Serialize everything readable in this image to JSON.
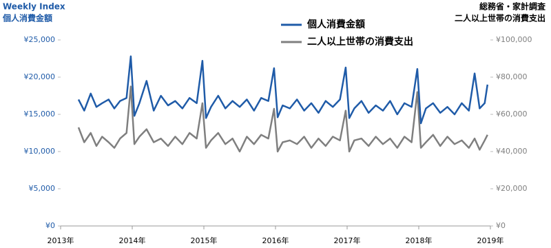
{
  "chart_data": {
    "type": "line",
    "title": "Weekly Index",
    "subtitle": "個人消費金額",
    "source_title": "総務省・家計調査",
    "source_subtitle": "二人以上世帯の消費支出",
    "x": [
      2013.25,
      2013.33,
      2013.42,
      2013.5,
      2013.58,
      2013.67,
      2013.75,
      2013.83,
      2013.92,
      2013.98,
      2014.03,
      2014.1,
      2014.2,
      2014.3,
      2014.4,
      2014.5,
      2014.6,
      2014.7,
      2014.8,
      2014.9,
      2014.98,
      2015.03,
      2015.1,
      2015.2,
      2015.3,
      2015.4,
      2015.5,
      2015.6,
      2015.7,
      2015.8,
      2015.9,
      2015.98,
      2016.03,
      2016.1,
      2016.2,
      2016.3,
      2016.4,
      2016.5,
      2016.6,
      2016.7,
      2016.8,
      2016.9,
      2016.98,
      2017.03,
      2017.1,
      2017.2,
      2017.3,
      2017.4,
      2017.5,
      2017.6,
      2017.7,
      2017.8,
      2017.9,
      2017.98,
      2018.03,
      2018.1,
      2018.2,
      2018.3,
      2018.4,
      2018.5,
      2018.6,
      2018.7,
      2018.78,
      2018.85,
      2018.92,
      2018.96
    ],
    "series": [
      {
        "name": "個人消費金額",
        "color": "#1f5ba8",
        "values": [
          17000,
          15500,
          17800,
          16000,
          16500,
          17000,
          15800,
          16800,
          17200,
          22800,
          14800,
          16500,
          19500,
          15500,
          17500,
          16200,
          16800,
          15800,
          17200,
          16500,
          22200,
          14500,
          16000,
          17500,
          15800,
          16800,
          16000,
          17000,
          15500,
          17200,
          16800,
          21200,
          14600,
          16200,
          15800,
          17000,
          15500,
          16500,
          15200,
          16800,
          16000,
          17000,
          21300,
          14500,
          15800,
          16800,
          15200,
          16200,
          15500,
          16800,
          15000,
          16500,
          16000,
          21100,
          13800,
          15800,
          16500,
          15200,
          16000,
          15000,
          16500,
          15500,
          20500,
          15800,
          16500,
          19000
        ]
      },
      {
        "name": "二人以上世帯の消費支出",
        "color": "#7f7f7f",
        "axis": "y2",
        "values": [
          53000,
          45000,
          50000,
          43000,
          48000,
          45000,
          42000,
          47000,
          50000,
          75000,
          44000,
          48000,
          52000,
          45000,
          47000,
          43000,
          48000,
          44000,
          50000,
          47000,
          66000,
          42000,
          46000,
          50000,
          44000,
          47000,
          40000,
          48000,
          44000,
          49000,
          47000,
          63000,
          40000,
          45000,
          46000,
          44000,
          48000,
          42000,
          47000,
          43000,
          48000,
          46000,
          62000,
          40000,
          46000,
          47000,
          43000,
          48000,
          44000,
          47000,
          42000,
          48000,
          45000,
          72000,
          42000,
          45000,
          49000,
          43000,
          48000,
          44000,
          46000,
          42000,
          47000,
          41000,
          46000,
          49000
        ]
      }
    ],
    "xlim": [
      2013,
      2019
    ],
    "xticks": [
      {
        "value": 2013,
        "label": "2013年"
      },
      {
        "value": 2014,
        "label": "2014年"
      },
      {
        "value": 2015,
        "label": "2015年"
      },
      {
        "value": 2016,
        "label": "2016年"
      },
      {
        "value": 2017,
        "label": "2017年"
      },
      {
        "value": 2018,
        "label": "2018年"
      },
      {
        "value": 2019,
        "label": "2019年"
      }
    ],
    "ylim": [
      0,
      25000
    ],
    "yticks": [
      {
        "value": 0,
        "label": "¥0"
      },
      {
        "value": 5000,
        "label": "¥5,000"
      },
      {
        "value": 10000,
        "label": "¥10,000"
      },
      {
        "value": 15000,
        "label": "¥15,000"
      },
      {
        "value": 20000,
        "label": "¥20,000"
      },
      {
        "value": 25000,
        "label": "¥25,000"
      }
    ],
    "y2lim": [
      0,
      100000
    ],
    "y2ticks": [
      {
        "value": 0,
        "label": "¥0"
      },
      {
        "value": 20000,
        "label": "¥20,000"
      },
      {
        "value": 40000,
        "label": "¥40,000"
      },
      {
        "value": 60000,
        "label": "¥60,000"
      },
      {
        "value": 80000,
        "label": "¥80,000"
      },
      {
        "value": 100000,
        "label": "¥100,000"
      }
    ],
    "y_color": "#1f5ba8",
    "y2_color": "#7f7f7f"
  }
}
